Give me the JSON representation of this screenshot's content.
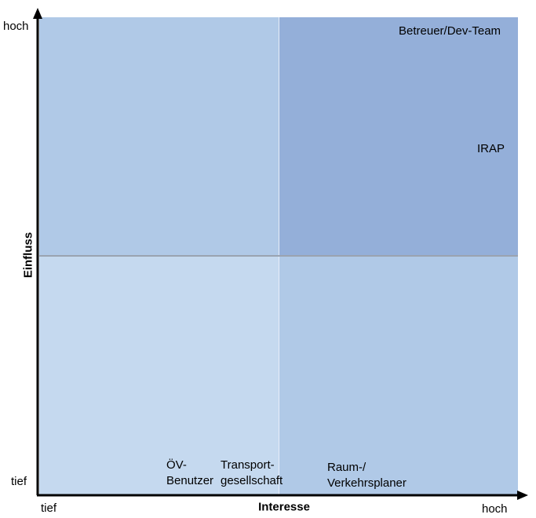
{
  "y_axis": {
    "title": "Einfluss",
    "high": "hoch",
    "low": "tief"
  },
  "x_axis": {
    "title": "Interesse",
    "high": "hoch",
    "low": "tief"
  },
  "stakeholders": {
    "betreuer": "Betreuer/Dev-Team",
    "irap": "IRAP",
    "oev_line1": "ÖV-",
    "oev_line2": "Benutzer",
    "transport_line1": "Transport-",
    "transport_line2": "gesellschaft",
    "raum_line1": "Raum-/",
    "raum_line2": "Verkehrsplaner"
  },
  "colors": {
    "quadrant_high_high": "#94afd9",
    "quadrant_mid": "#b0c9e7",
    "quadrant_low_low": "#c5d9ef",
    "axis": "#000000"
  }
}
